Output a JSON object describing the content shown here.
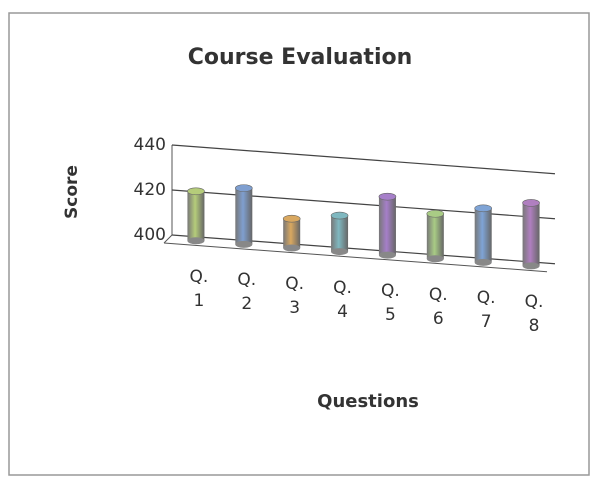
{
  "chart_data": {
    "type": "bar",
    "title": "Course Evaluation",
    "x_label": "Questions",
    "y_label": "Score",
    "categories": [
      "Q. 1",
      "Q. 2",
      "Q. 3",
      "Q. 4",
      "Q. 5",
      "Q. 6",
      "Q. 7",
      "Q. 8"
    ],
    "values": [
      422,
      425,
      413,
      416,
      426,
      420,
      424,
      428
    ],
    "colors": [
      "#b5cc7a",
      "#7f9fd0",
      "#d9a860",
      "#7fb8c0",
      "#a67fc9",
      "#a9cc85",
      "#7fa4d6",
      "#b07fc0"
    ],
    "ylim": [
      400,
      440
    ],
    "yticks": [
      400,
      420,
      440
    ],
    "grid": true
  }
}
